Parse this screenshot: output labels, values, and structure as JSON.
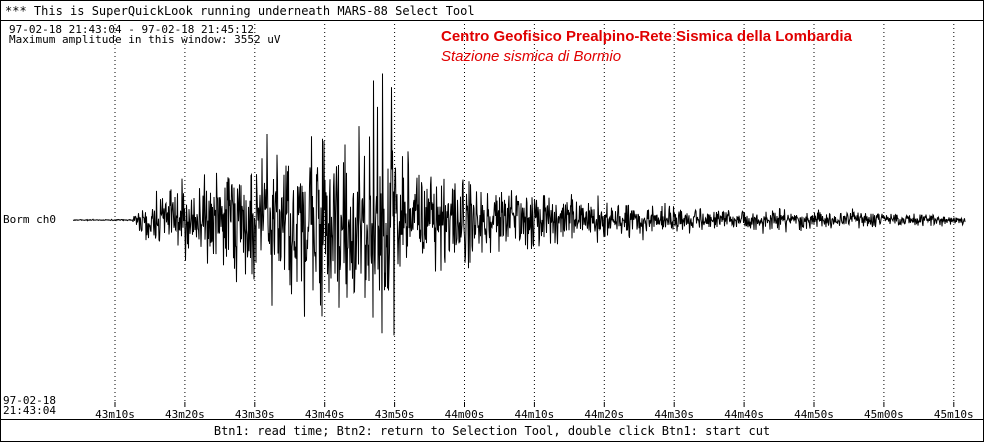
{
  "window_title": "*** This is SuperQuickLook running underneath MARS-88 Select Tool",
  "header": {
    "time_range": "97-02-18 21:43:04 - 97-02-18 21:45:12",
    "max_amplitude": "Maximum amplitude in this window: 3552 uV"
  },
  "organization": {
    "title": "Centro Geofisico Prealpino-Rete Sismica della Lombardia",
    "subtitle": "Stazione sismica di Bormio"
  },
  "colors": {
    "accent": "#e00000",
    "trace": "#000000",
    "grid": "#000000"
  },
  "channel_label": "Borm ch0",
  "start_stamp": {
    "date": "97-02-18",
    "time": "21:43:04"
  },
  "time_ticks": [
    "43m10s",
    "43m20s",
    "43m30s",
    "43m40s",
    "43m50s",
    "44m00s",
    "44m10s",
    "44m20s",
    "44m30s",
    "44m40s",
    "44m50s",
    "45m00s",
    "45m10s"
  ],
  "status_bar": "Btn1: read time; Btn2: return to Selection Tool, double click Btn1: start cut"
}
